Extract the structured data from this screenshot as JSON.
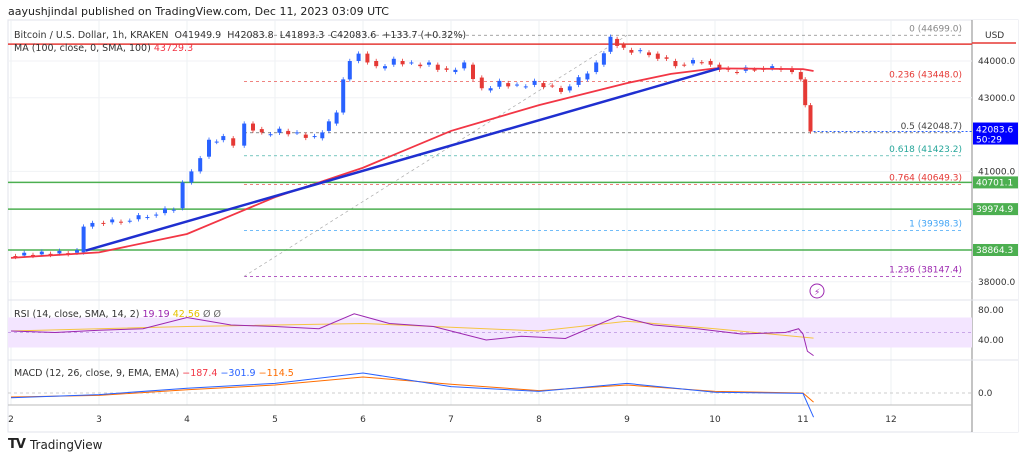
{
  "publisher": "aayushjindal published on TradingView.com, Dec 11, 2023 03:09 UTC",
  "legend": {
    "symbol": "Bitcoin / U.S. Dollar, 1h, KRAKEN",
    "open": "O41949.9",
    "high": "H42083.8",
    "low": "L41893.3",
    "close": "C42083.6",
    "change": "+133.7 (+0.32%)",
    "ma_label": "MA (100, close, 0, SMA, 100)",
    "ma_value": "43729.3",
    "rsi_label": "RSI (14, close, SMA, 14, 2)",
    "rsi_value": "19.19",
    "rsi_ma": "42.56",
    "rsi_extra": "Ø Ø",
    "macd_label": "MACD (12, 26, close, 9, EMA, EMA)",
    "macd_hist": "−187.4",
    "macd_line": "−301.9",
    "macd_signal": "−114.5"
  },
  "currency": "USD",
  "last_price": {
    "value": "42083.6",
    "countdown": "50:29"
  },
  "footer": "TradingView",
  "colors": {
    "up": "#2962ff",
    "down": "#e53935",
    "ma": "#f23645",
    "trend": "#1f2fd0",
    "support": "#4caf50",
    "rsi": "#9c27b0",
    "rsi_ma": "#f5c542",
    "macd": "#2962ff",
    "signal": "#ff6d00"
  },
  "chart_data": {
    "type": "candlestick",
    "x_ticks": [
      "2",
      "3",
      "4",
      "5",
      "6",
      "7",
      "8",
      "9",
      "10",
      "11",
      "12"
    ],
    "y_ticks": [
      "44000.0",
      "43000.0",
      "41000.0",
      "38000.0"
    ],
    "ylim": [
      37600,
      45200
    ],
    "price_path": [
      [
        2.0,
        38700
      ],
      [
        2.4,
        38760
      ],
      [
        2.8,
        38800
      ],
      [
        2.85,
        39500
      ],
      [
        3.0,
        39600
      ],
      [
        3.3,
        39650
      ],
      [
        3.6,
        39800
      ],
      [
        3.9,
        40000
      ],
      [
        4.0,
        40700
      ],
      [
        4.1,
        41000
      ],
      [
        4.3,
        41800
      ],
      [
        4.45,
        41900
      ],
      [
        4.6,
        41700
      ],
      [
        4.7,
        42300
      ],
      [
        4.9,
        42000
      ],
      [
        5.1,
        42100
      ],
      [
        5.3,
        42000
      ],
      [
        5.5,
        41900
      ],
      [
        5.65,
        42300
      ],
      [
        5.75,
        42600
      ],
      [
        5.8,
        43500
      ],
      [
        5.9,
        44000
      ],
      [
        6.0,
        44200
      ],
      [
        6.2,
        43800
      ],
      [
        6.4,
        44000
      ],
      [
        6.6,
        43900
      ],
      [
        6.8,
        43900
      ],
      [
        7.0,
        43700
      ],
      [
        7.2,
        43900
      ],
      [
        7.4,
        43200
      ],
      [
        7.6,
        43400
      ],
      [
        7.8,
        43300
      ],
      [
        8.0,
        43400
      ],
      [
        8.3,
        43200
      ],
      [
        8.5,
        43500
      ],
      [
        8.7,
        43900
      ],
      [
        8.85,
        44600
      ],
      [
        9.0,
        44300
      ],
      [
        9.3,
        44200
      ],
      [
        9.6,
        43900
      ],
      [
        9.9,
        44000
      ],
      [
        10.0,
        43900
      ],
      [
        10.2,
        43700
      ],
      [
        10.5,
        43800
      ],
      [
        10.8,
        43800
      ],
      [
        10.95,
        43700
      ],
      [
        11.0,
        43500
      ],
      [
        11.05,
        42800
      ],
      [
        11.12,
        42083.6
      ]
    ],
    "ma_path": [
      [
        2.0,
        38650
      ],
      [
        3.0,
        38800
      ],
      [
        4.0,
        39300
      ],
      [
        4.5,
        39800
      ],
      [
        5.0,
        40300
      ],
      [
        6.0,
        41100
      ],
      [
        7.0,
        42100
      ],
      [
        8.0,
        42800
      ],
      [
        9.0,
        43400
      ],
      [
        9.5,
        43650
      ],
      [
        10.0,
        43800
      ],
      [
        11.0,
        43780
      ],
      [
        11.12,
        43729.3
      ]
    ],
    "trendline": [
      [
        2.85,
        38850
      ],
      [
        10.05,
        43800
      ]
    ],
    "support_levels": [
      {
        "price": 40701.1,
        "label": "40701.1"
      },
      {
        "price": 39974.9,
        "label": "39974.9"
      },
      {
        "price": 38864.3,
        "label": "38864.3"
      }
    ],
    "resistance_level": 44460,
    "fib_levels": [
      {
        "label": "0 (44699.0)",
        "price": 44699.0,
        "color": "#888888"
      },
      {
        "label": "0.236 (43448.0)",
        "price": 43448.0,
        "color": "#e53935"
      },
      {
        "label": "0.5 (42048.7)",
        "price": 42048.7,
        "color": "#444444"
      },
      {
        "label": "0.618 (41423.2)",
        "price": 41423.2,
        "color": "#26a69a"
      },
      {
        "label": "0.764 (40649.3)",
        "price": 40649.3,
        "color": "#e53935"
      },
      {
        "label": "1 (39398.3)",
        "price": 39398.3,
        "color": "#42a5f5"
      },
      {
        "label": "1.236 (38147.4)",
        "price": 38147.4,
        "color": "#9c27b0"
      }
    ],
    "rsi": {
      "ticks": [
        "80.00",
        "40.00"
      ],
      "path": [
        [
          2.0,
          52
        ],
        [
          2.5,
          50
        ],
        [
          3.0,
          53
        ],
        [
          3.5,
          55
        ],
        [
          4.0,
          70
        ],
        [
          4.5,
          60
        ],
        [
          5.0,
          58
        ],
        [
          5.5,
          55
        ],
        [
          5.9,
          75
        ],
        [
          6.3,
          62
        ],
        [
          6.8,
          58
        ],
        [
          7.4,
          40
        ],
        [
          7.8,
          45
        ],
        [
          8.3,
          42
        ],
        [
          8.9,
          72
        ],
        [
          9.3,
          60
        ],
        [
          9.8,
          55
        ],
        [
          10.3,
          48
        ],
        [
          10.8,
          50
        ],
        [
          10.95,
          55
        ],
        [
          11.0,
          48
        ],
        [
          11.05,
          25
        ],
        [
          11.12,
          19.19
        ]
      ],
      "ma_path": [
        [
          2,
          52
        ],
        [
          4,
          58
        ],
        [
          6,
          62
        ],
        [
          8,
          52
        ],
        [
          9,
          65
        ],
        [
          10,
          55
        ],
        [
          11.12,
          42.56
        ]
      ]
    },
    "macd": {
      "ticks": [
        "0.0"
      ],
      "line": [
        [
          2,
          -60
        ],
        [
          3,
          -20
        ],
        [
          4,
          60
        ],
        [
          5,
          120
        ],
        [
          6,
          250
        ],
        [
          7,
          80
        ],
        [
          8,
          20
        ],
        [
          9,
          120
        ],
        [
          10,
          10
        ],
        [
          11,
          -5
        ],
        [
          11.12,
          -301.9
        ]
      ],
      "signal": [
        [
          2,
          -50
        ],
        [
          3,
          -30
        ],
        [
          4,
          40
        ],
        [
          5,
          100
        ],
        [
          6,
          200
        ],
        [
          7,
          110
        ],
        [
          8,
          30
        ],
        [
          9,
          100
        ],
        [
          10,
          20
        ],
        [
          11,
          0
        ],
        [
          11.12,
          -114.5
        ]
      ]
    }
  }
}
